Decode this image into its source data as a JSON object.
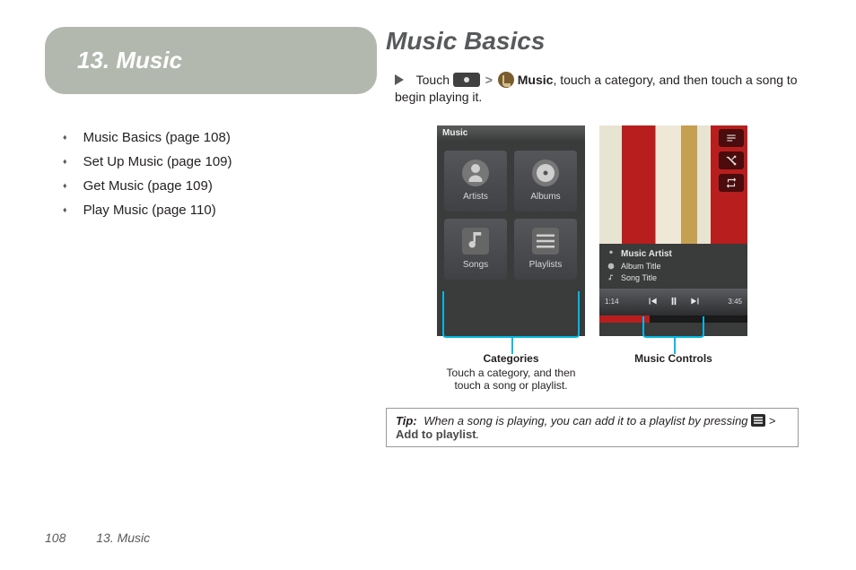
{
  "chapter": {
    "number": "13",
    "title": "13. Music"
  },
  "toc": [
    {
      "label": "Music Basics (page 108)"
    },
    {
      "label": "Set Up Music (page 109)"
    },
    {
      "label": "Get Music (page 109)"
    },
    {
      "label": "Play Music (page 110)"
    }
  ],
  "section": {
    "title": "Music Basics"
  },
  "instruction": {
    "prefix": "Touch",
    "gt": ">",
    "app_label": "Music",
    "suffix": ", touch a category, and then touch a song to begin playing it."
  },
  "categories_screen": {
    "title": "Music",
    "tiles": [
      "Artists",
      "Albums",
      "Songs",
      "Playlists"
    ],
    "bg_color": "#3a3b3b",
    "tile_bg": "#4a4b4f",
    "text_color": "#d7d7d7"
  },
  "player_screen": {
    "artist": "Music Artist",
    "album": "Album Title",
    "song": "Song Title",
    "time_current": "1:14",
    "time_total": "3:45",
    "progress_pct": 34,
    "accent_color": "#b81e1e",
    "bracket_color": "#00b8e4"
  },
  "captions": {
    "categories": {
      "title": "Categories",
      "text": "Touch a category, and then touch a song or playlist."
    },
    "controls": {
      "title": "Music Controls"
    }
  },
  "tip": {
    "label": "Tip:",
    "text_before": "When a song is playing, you can add it to a playlist by pressing",
    "gt": ">",
    "action": "Add to playlist",
    "period": "."
  },
  "footer": {
    "page": "108",
    "chapter": "13. Music"
  }
}
